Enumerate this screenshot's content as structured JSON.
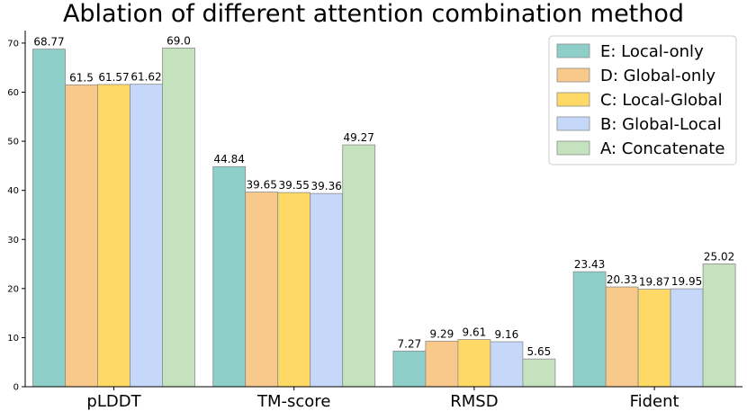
{
  "chart_data": {
    "type": "bar",
    "title": "Ablation of different attention combination method",
    "xlabel": "",
    "ylabel": "",
    "ylim": [
      0,
      72
    ],
    "yticks": [
      0,
      10,
      20,
      30,
      40,
      50,
      60,
      70
    ],
    "categories": [
      "pLDDT",
      "TM-score",
      "RMSD",
      "Fident"
    ],
    "legend_position": "top-right",
    "series": [
      {
        "name": "E: Local-only",
        "color": "#8ecfc9",
        "values": [
          68.77,
          44.84,
          7.27,
          23.43
        ],
        "labels": [
          "68.77",
          "44.84",
          "7.27",
          "23.43"
        ]
      },
      {
        "name": "D: Global-only",
        "color": "#f8c98b",
        "values": [
          61.5,
          39.65,
          9.29,
          20.33
        ],
        "labels": [
          "61.5",
          "39.65",
          "9.29",
          "20.33"
        ]
      },
      {
        "name": "C: Local-Global",
        "color": "#ffd966",
        "values": [
          61.57,
          39.55,
          9.61,
          19.87
        ],
        "labels": [
          "61.57",
          "39.55",
          "9.61",
          "19.87"
        ]
      },
      {
        "name": "B: Global-Local",
        "color": "#c5d8fa",
        "values": [
          61.62,
          39.36,
          9.16,
          19.95
        ],
        "labels": [
          "61.62",
          "39.36",
          "9.16",
          "19.95"
        ]
      },
      {
        "name": "A: Concatenate",
        "color": "#c3e2bd",
        "values": [
          69.0,
          49.27,
          5.65,
          25.02
        ],
        "labels": [
          "69.0",
          "49.27",
          "5.65",
          "25.02"
        ]
      }
    ]
  }
}
